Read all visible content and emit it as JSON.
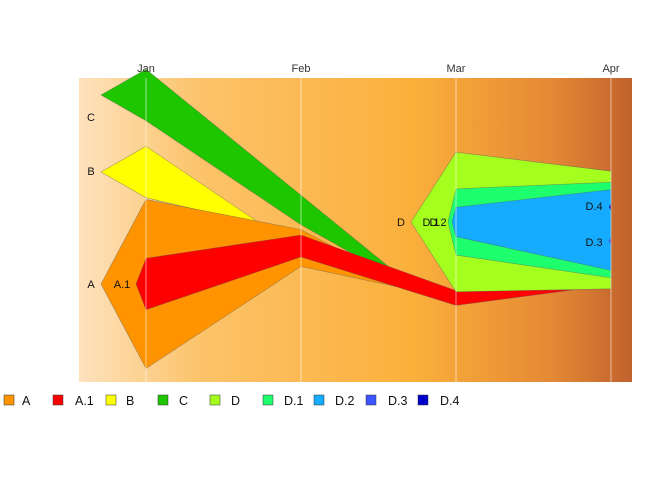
{
  "chart_data": {
    "type": "area",
    "x": [
      "Jan",
      "Feb",
      "Mar",
      "Apr"
    ],
    "xaxis_position": "top",
    "legend_position": "bottom",
    "grid": true,
    "background_gradient": [
      "#fde2bd",
      "#fcc36a",
      "#fbb03b",
      "#e58a35",
      "#c0622d"
    ],
    "series": [
      {
        "name": "A",
        "color": "#ff9400",
        "values": [
          23,
          5,
          0,
          0
        ]
      },
      {
        "name": "A.1",
        "color": "#ff0000",
        "values": [
          7,
          3,
          2,
          0
        ]
      },
      {
        "name": "B",
        "color": "#ffff00",
        "values": [
          7,
          0,
          0,
          0
        ]
      },
      {
        "name": "C",
        "color": "#1ec600",
        "values": [
          7,
          4,
          0,
          0
        ]
      },
      {
        "name": "D",
        "color": "#a5ff1e",
        "values": [
          0,
          0,
          19,
          16
        ]
      },
      {
        "name": "D.1",
        "color": "#1eff6e",
        "values": [
          0,
          0,
          9,
          13
        ]
      },
      {
        "name": "D.2",
        "color": "#15abff",
        "values": [
          0,
          0,
          4,
          11
        ]
      },
      {
        "name": "D.3",
        "color": "#3c54ff",
        "values": [
          0,
          0,
          0,
          1
        ]
      },
      {
        "name": "D.4",
        "color": "#0000cc",
        "values": [
          0,
          0,
          0,
          1
        ]
      }
    ],
    "labels": [
      "A",
      "A.1",
      "B",
      "C",
      "D",
      "D.1",
      "D.2",
      "D.3",
      "D.4"
    ]
  }
}
